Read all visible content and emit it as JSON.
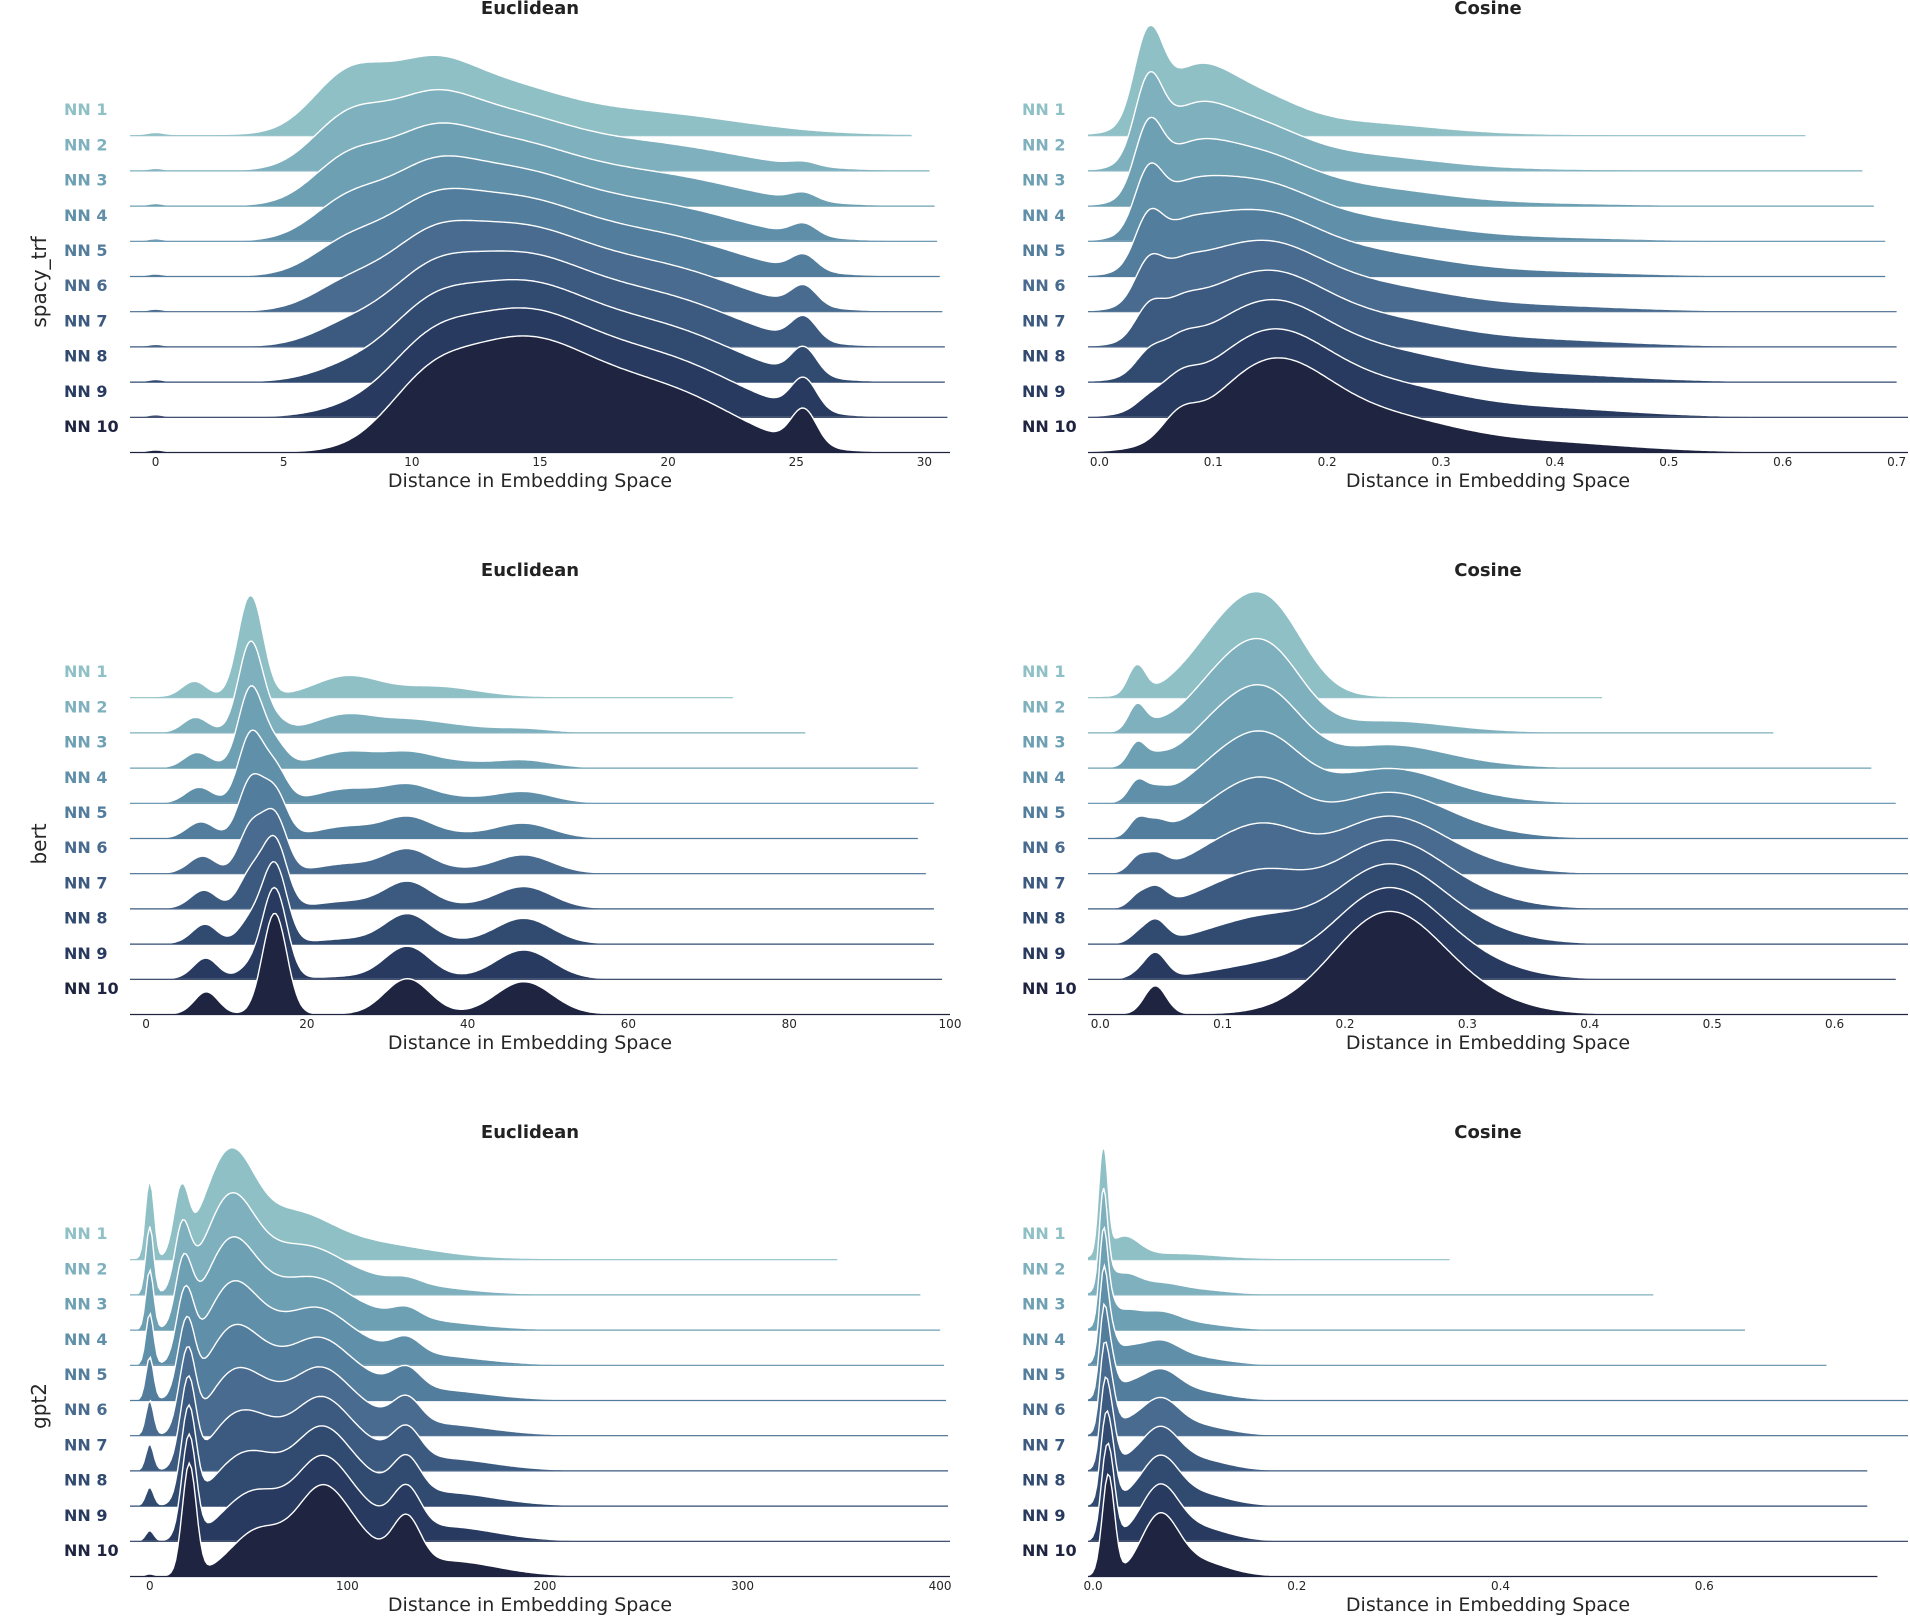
{
  "figure": {
    "row_labels": [
      "spacy_trf",
      "bert",
      "gpt2"
    ],
    "palette": [
      "#8fc0c6",
      "#7fb0be",
      "#6ea0b4",
      "#5f8fa9",
      "#537d9c",
      "#486b8f",
      "#3c5a80",
      "#314a70",
      "#283a5f",
      "#1f2440"
    ]
  },
  "chart_data": [
    {
      "type": "ridgeline",
      "model": "spacy_trf",
      "title": "Euclidean",
      "xlabel": "Distance in Embedding Space",
      "xlim": [
        -1,
        31
      ],
      "xticks": [
        0,
        5,
        10,
        15,
        20,
        25,
        30
      ],
      "tick_labels": [
        "0",
        "5",
        "10",
        "15",
        "20",
        "25",
        "30"
      ],
      "series_labels": [
        "NN 1",
        "NN 2",
        "NN 3",
        "NN 4",
        "NN 5",
        "NN 6",
        "NN 7",
        "NN 8",
        "NN 9",
        "NN 10"
      ],
      "x_max_per_series": [
        29.5,
        30.2,
        30.4,
        30.5,
        30.6,
        30.7,
        30.8,
        30.8,
        30.9,
        31.0
      ],
      "components_first": [
        [
          0,
          0.3,
          0.02
        ],
        [
          7.5,
          1.4,
          0.55
        ],
        [
          10.5,
          1.6,
          0.45
        ],
        [
          13,
          2.5,
          0.42
        ],
        [
          18,
          3.5,
          0.2
        ],
        [
          22,
          3,
          0.05
        ]
      ],
      "components_last": [
        [
          0,
          0.3,
          0.02
        ],
        [
          10.5,
          1.6,
          0.45
        ],
        [
          13.8,
          2.5,
          0.85
        ],
        [
          17.5,
          3,
          0.5
        ],
        [
          21,
          2.5,
          0.3
        ],
        [
          25.3,
          0.5,
          0.35
        ]
      ]
    },
    {
      "type": "ridgeline",
      "model": "spacy_trf",
      "title": "Cosine",
      "xlabel": "Distance in Embedding Space",
      "xlim": [
        -0.01,
        0.71
      ],
      "xticks": [
        0,
        0.1,
        0.2,
        0.3,
        0.4,
        0.5,
        0.6,
        0.7
      ],
      "tick_labels": [
        "0.0",
        "0.1",
        "0.2",
        "0.3",
        "0.4",
        "0.5",
        "0.6",
        "0.7"
      ],
      "series_labels": [
        "NN 1",
        "NN 2",
        "NN 3",
        "NN 4",
        "NN 5",
        "NN 6",
        "NN 7",
        "NN 8",
        "NN 9",
        "NN 10"
      ],
      "x_max_per_series": [
        0.62,
        0.67,
        0.68,
        0.69,
        0.69,
        0.7,
        0.7,
        0.7,
        0.71,
        0.71
      ],
      "components_first": [
        [
          0.043,
          0.012,
          0.8
        ],
        [
          0.08,
          0.03,
          0.5
        ],
        [
          0.13,
          0.04,
          0.35
        ],
        [
          0.22,
          0.07,
          0.12
        ]
      ],
      "components_last": [
        [
          0.07,
          0.015,
          0.2
        ],
        [
          0.15,
          0.05,
          0.85
        ],
        [
          0.25,
          0.06,
          0.3
        ],
        [
          0.38,
          0.08,
          0.1
        ]
      ]
    },
    {
      "type": "ridgeline",
      "model": "bert",
      "title": "Euclidean",
      "xlabel": "Distance in Embedding Space",
      "xlim": [
        -2,
        100
      ],
      "xticks": [
        0,
        20,
        40,
        60,
        80,
        100
      ],
      "tick_labels": [
        "0",
        "20",
        "40",
        "60",
        "80",
        "100"
      ],
      "series_labels": [
        "NN 1",
        "NN 2",
        "NN 3",
        "NN 4",
        "NN 5",
        "NN 6",
        "NN 7",
        "NN 8",
        "NN 9",
        "NN 10"
      ],
      "x_max_per_series": [
        73,
        82,
        96,
        98,
        96,
        97,
        98,
        98,
        99,
        100
      ],
      "components_first": [
        [
          6,
          1.5,
          0.15
        ],
        [
          13,
          1.5,
          1.0
        ],
        [
          25,
          4,
          0.2
        ],
        [
          36,
          5,
          0.1
        ]
      ],
      "components_last": [
        [
          7.5,
          1.5,
          0.22
        ],
        [
          16,
          1.5,
          1.0
        ],
        [
          32.5,
          2.8,
          0.35
        ],
        [
          47,
          3.5,
          0.32
        ]
      ]
    },
    {
      "type": "ridgeline",
      "model": "bert",
      "title": "Cosine",
      "xlabel": "Distance in Embedding Space",
      "xlim": [
        -0.01,
        0.66
      ],
      "xticks": [
        0,
        0.1,
        0.2,
        0.3,
        0.4,
        0.5,
        0.6
      ],
      "tick_labels": [
        "0.0",
        "0.1",
        "0.2",
        "0.3",
        "0.4",
        "0.5",
        "0.6"
      ],
      "series_labels": [
        "NN 1",
        "NN 2",
        "NN 3",
        "NN 4",
        "NN 5",
        "NN 6",
        "NN 7",
        "NN 8",
        "NN 9",
        "NN 10"
      ],
      "x_max_per_series": [
        0.41,
        0.55,
        0.63,
        0.65,
        0.66,
        0.66,
        0.66,
        0.66,
        0.65,
        0.66
      ],
      "components_first": [
        [
          0.03,
          0.007,
          0.28
        ],
        [
          0.1,
          0.03,
          0.55
        ],
        [
          0.14,
          0.028,
          0.75
        ]
      ],
      "components_last": [
        [
          0.045,
          0.009,
          0.28
        ],
        [
          0.235,
          0.045,
          1.0
        ],
        [
          0.31,
          0.04,
          0.1
        ]
      ]
    },
    {
      "type": "ridgeline",
      "model": "gpt2",
      "title": "Euclidean",
      "xlabel": "Distance in Embedding Space",
      "xlim": [
        -10,
        405
      ],
      "xticks": [
        0,
        100,
        200,
        300,
        400
      ],
      "tick_labels": [
        "0",
        "100",
        "200",
        "300",
        "400"
      ],
      "series_labels": [
        "NN 1",
        "NN 2",
        "NN 3",
        "NN 4",
        "NN 5",
        "NN 6",
        "NN 7",
        "NN 8",
        "NN 9",
        "NN 10"
      ],
      "x_max_per_series": [
        348,
        390,
        400,
        402,
        403,
        404,
        404,
        404,
        405,
        405
      ],
      "components_first": [
        [
          0,
          2,
          0.75
        ],
        [
          16,
          3.5,
          0.6
        ],
        [
          40,
          12,
          0.95
        ],
        [
          70,
          20,
          0.4
        ],
        [
          110,
          30,
          0.15
        ]
      ],
      "components_last": [
        [
          0,
          2,
          0.02
        ],
        [
          20,
          3.5,
          1.1
        ],
        [
          55,
          14,
          0.45
        ],
        [
          85,
          12,
          0.6
        ],
        [
          100,
          15,
          0.4
        ],
        [
          130,
          7,
          0.45
        ],
        [
          150,
          25,
          0.15
        ]
      ]
    },
    {
      "type": "ridgeline",
      "model": "gpt2",
      "title": "Cosine",
      "xlabel": "Distance in Embedding Space",
      "xlim": [
        -0.005,
        0.8
      ],
      "xticks": [
        0,
        0.2,
        0.4,
        0.6,
        0.8
      ],
      "tick_labels": [
        "0.0",
        "0.2",
        "0.4",
        "0.6",
        "0.8"
      ],
      "series_labels": [
        "NN 1",
        "NN 2",
        "NN 3",
        "NN 4",
        "NN 5",
        "NN 6",
        "NN 7",
        "NN 8",
        "NN 9",
        "NN 10"
      ],
      "x_max_per_series": [
        0.35,
        0.55,
        0.64,
        0.72,
        0.8,
        0.8,
        0.76,
        0.76,
        0.8,
        0.77
      ],
      "components_first": [
        [
          0.01,
          0.004,
          1.0
        ],
        [
          0.03,
          0.015,
          0.2
        ],
        [
          0.08,
          0.04,
          0.05
        ]
      ],
      "components_last": [
        [
          0.015,
          0.006,
          1.0
        ],
        [
          0.065,
          0.018,
          0.55
        ],
        [
          0.1,
          0.03,
          0.15
        ]
      ]
    }
  ]
}
